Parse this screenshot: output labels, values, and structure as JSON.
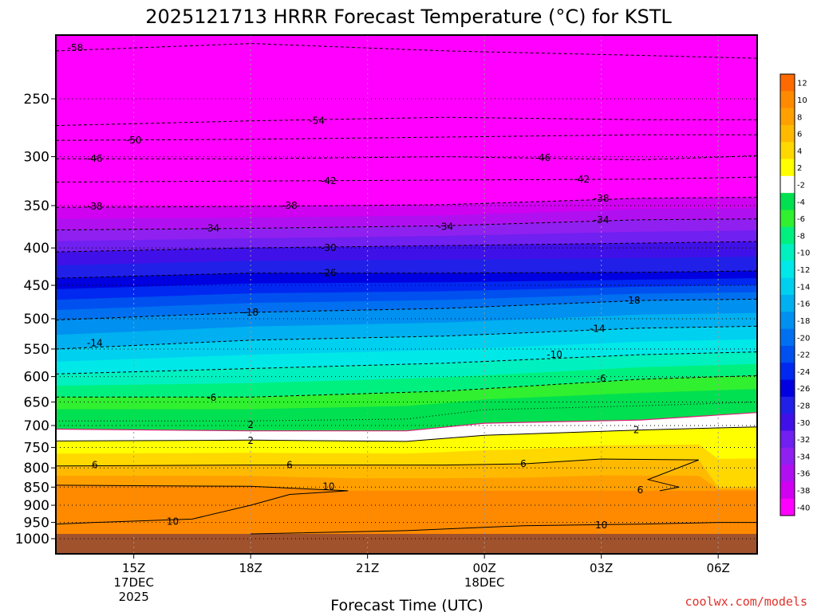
{
  "chart_data": {
    "type": "heatmap",
    "title": "2025121713 HRRR Forecast Temperature (°C) for KSTL",
    "xlabel": "Forecast Time (UTC)",
    "ylabel": "",
    "x_ticks": [
      {
        "label": "15Z",
        "sub": [
          "17DEC",
          "2025"
        ],
        "hours": 0
      },
      {
        "label": "18Z",
        "sub": [],
        "hours": 3
      },
      {
        "label": "21Z",
        "sub": [],
        "hours": 6
      },
      {
        "label": "00Z",
        "sub": [
          "18DEC"
        ],
        "hours": 9
      },
      {
        "label": "03Z",
        "sub": [],
        "hours": 12
      },
      {
        "label": "06Z",
        "sub": [],
        "hours": 15
      }
    ],
    "xlim": [
      -2,
      16
    ],
    "y_ticks": [
      {
        "label": "250",
        "value": 250
      },
      {
        "label": "300",
        "value": 300
      },
      {
        "label": "350",
        "value": 350
      },
      {
        "label": "400",
        "value": 400
      },
      {
        "label": "450",
        "value": 450
      },
      {
        "label": "500",
        "value": 500
      },
      {
        "label": "550",
        "value": 550
      },
      {
        "label": "600",
        "value": 600
      },
      {
        "label": "650",
        "value": 650
      },
      {
        "label": "700",
        "value": 700
      },
      {
        "label": "750",
        "value": 750
      },
      {
        "label": "800",
        "value": 800
      },
      {
        "label": "850",
        "value": 850
      },
      {
        "label": "900",
        "value": 900
      },
      {
        "label": "950",
        "value": 950
      },
      {
        "label": "1000",
        "value": 1000
      }
    ],
    "ylim": [
      200,
      1020
    ],
    "y_scale": "log-pressure (reversed)",
    "grid": true,
    "colorbar": {
      "placement": "right",
      "levels": [
        "12",
        "10",
        "8",
        "6",
        "4",
        "2",
        "-2",
        "-4",
        "-6",
        "-8",
        "-10",
        "-12",
        "-14",
        "-16",
        "-18",
        "-20",
        "-22",
        "-24",
        "-26",
        "-28",
        "-30",
        "-32",
        "-34",
        "-36",
        "-38",
        "-40"
      ],
      "colors": [
        "#ff6a00",
        "#ff8a00",
        "#ffa000",
        "#ffba00",
        "#ffd800",
        "#ffff00",
        "#ffffff",
        "#00e050",
        "#30f030",
        "#00f080",
        "#00f0c0",
        "#00e8e8",
        "#00d0f0",
        "#00b0f0",
        "#0090f0",
        "#0070f0",
        "#0050f0",
        "#0028f0",
        "#0000e0",
        "#2020e8",
        "#4010e8",
        "#7020f0",
        "#9020f0",
        "#b010f0",
        "#d000f0",
        "#ff00ff"
      ]
    },
    "bands": [
      {
        "temp": -58,
        "color": "#ff00ff"
      },
      {
        "temp": -40,
        "color": "#ff00ff"
      },
      {
        "temp": -38,
        "color": "#d000f0"
      },
      {
        "temp": -36,
        "color": "#b010f0"
      },
      {
        "temp": -34,
        "color": "#9020f0"
      },
      {
        "temp": -32,
        "color": "#7020f0"
      },
      {
        "temp": -30,
        "color": "#4010e8"
      },
      {
        "temp": -28,
        "color": "#2020e8"
      },
      {
        "temp": -26,
        "color": "#0000e0"
      },
      {
        "temp": -24,
        "color": "#0028f0"
      },
      {
        "temp": -22,
        "color": "#0050f0"
      },
      {
        "temp": -20,
        "color": "#0070f0"
      },
      {
        "temp": -18,
        "color": "#0090f0"
      },
      {
        "temp": -16,
        "color": "#00b0f0"
      },
      {
        "temp": -14,
        "color": "#00d0f0"
      },
      {
        "temp": -12,
        "color": "#00e8e8"
      },
      {
        "temp": -10,
        "color": "#00f0c0"
      },
      {
        "temp": -8,
        "color": "#00f080"
      },
      {
        "temp": -6,
        "color": "#30f030"
      },
      {
        "temp": -4,
        "color": "#00e050"
      },
      {
        "temp": -2,
        "color": "#00e050"
      },
      {
        "temp": 0,
        "color": "#ffffff"
      },
      {
        "temp": 2,
        "color": "#ffff00"
      },
      {
        "temp": 4,
        "color": "#ffd800"
      },
      {
        "temp": 6,
        "color": "#ffba00"
      },
      {
        "temp": 8,
        "color": "#ffa000"
      },
      {
        "temp": 10,
        "color": "#ff8a00"
      }
    ],
    "ground_color": "#a0522d",
    "ground_pressure": 985,
    "contours": [
      {
        "temp": -58,
        "label": "-58",
        "style": "dashed",
        "points": [
          [
            -2,
            215
          ],
          [
            3,
            210
          ],
          [
            8,
            215
          ],
          [
            13,
            218
          ],
          [
            16,
            220
          ]
        ],
        "label_at": [
          [
            -1.5,
            213
          ]
        ]
      },
      {
        "temp": -54,
        "label": "-54",
        "style": "dashed",
        "points": [
          [
            -2,
            272
          ],
          [
            3,
            268
          ],
          [
            8,
            265
          ],
          [
            13,
            267
          ],
          [
            16,
            267
          ]
        ],
        "label_at": [
          [
            4.7,
            268
          ]
        ]
      },
      {
        "temp": -50,
        "label": "-50",
        "style": "dashed",
        "points": [
          [
            -2,
            285
          ],
          [
            3,
            284
          ],
          [
            8,
            282
          ],
          [
            13,
            280
          ],
          [
            16,
            280
          ]
        ],
        "label_at": [
          [
            0,
            285
          ]
        ]
      },
      {
        "temp": -46,
        "label": "-46",
        "style": "dashed",
        "points": [
          [
            -2,
            302
          ],
          [
            3,
            302
          ],
          [
            8,
            300
          ],
          [
            13,
            303
          ],
          [
            16,
            299
          ]
        ],
        "label_at": [
          [
            -1,
            302
          ],
          [
            10.5,
            301
          ]
        ]
      },
      {
        "temp": -42,
        "label": "-42",
        "style": "dashed",
        "points": [
          [
            -2,
            325
          ],
          [
            3,
            324
          ],
          [
            8,
            323
          ],
          [
            13,
            322
          ],
          [
            16,
            320
          ]
        ],
        "label_at": [
          [
            5,
            324
          ],
          [
            11.5,
            322
          ]
        ]
      },
      {
        "temp": -38,
        "label": "-38",
        "style": "dashed",
        "points": [
          [
            -2,
            352
          ],
          [
            3,
            351
          ],
          [
            8,
            349
          ],
          [
            13,
            342
          ],
          [
            16,
            341
          ]
        ],
        "label_at": [
          [
            -1,
            351
          ],
          [
            4,
            350
          ],
          [
            12,
            342
          ]
        ]
      },
      {
        "temp": -34,
        "label": "-34",
        "style": "dashed",
        "points": [
          [
            -2,
            378
          ],
          [
            3,
            376
          ],
          [
            8,
            373
          ],
          [
            13,
            366
          ],
          [
            16,
            365
          ]
        ],
        "label_at": [
          [
            2,
            376
          ],
          [
            8,
            374
          ],
          [
            12,
            366
          ]
        ]
      },
      {
        "temp": -30,
        "label": "-30",
        "style": "dashed",
        "points": [
          [
            -2,
            405
          ],
          [
            3,
            400
          ],
          [
            8,
            397
          ],
          [
            13,
            394
          ],
          [
            16,
            392
          ]
        ],
        "label_at": [
          [
            5,
            400
          ]
        ]
      },
      {
        "temp": -26,
        "label": "-26",
        "style": "dashed",
        "points": [
          [
            -2,
            440
          ],
          [
            3,
            433
          ],
          [
            8,
            433
          ],
          [
            13,
            432
          ],
          [
            16,
            430
          ]
        ],
        "label_at": [
          [
            5,
            433
          ]
        ]
      },
      {
        "temp": -18,
        "label": "-18",
        "style": "dashed",
        "points": [
          [
            -2,
            502
          ],
          [
            3,
            490
          ],
          [
            8,
            484
          ],
          [
            13,
            472
          ],
          [
            16,
            470
          ]
        ],
        "label_at": [
          [
            3,
            490
          ],
          [
            12.8,
            472
          ]
        ]
      },
      {
        "temp": -14,
        "label": "-14",
        "style": "dashed",
        "points": [
          [
            -2,
            550
          ],
          [
            3,
            535
          ],
          [
            8,
            528
          ],
          [
            13,
            515
          ],
          [
            16,
            512
          ]
        ],
        "label_at": [
          [
            -1,
            540
          ],
          [
            11.9,
            516
          ]
        ]
      },
      {
        "temp": -10,
        "label": "-10",
        "style": "dashed",
        "points": [
          [
            -2,
            595
          ],
          [
            3,
            585
          ],
          [
            8,
            575
          ],
          [
            13,
            560
          ],
          [
            16,
            555
          ]
        ],
        "label_at": [
          [
            10.8,
            560
          ]
        ]
      },
      {
        "temp": -6,
        "label": "-6",
        "style": "dashed",
        "points": [
          [
            -2,
            640
          ],
          [
            3,
            640
          ],
          [
            8,
            628
          ],
          [
            13,
            605
          ],
          [
            16,
            598
          ]
        ],
        "label_at": [
          [
            2,
            641
          ],
          [
            12,
            604
          ]
        ]
      },
      {
        "temp": -2,
        "label": "",
        "style": "dotted",
        "points": [
          [
            -2,
            690
          ],
          [
            3,
            690
          ],
          [
            7,
            686
          ],
          [
            9,
            666
          ],
          [
            13,
            658
          ],
          [
            16,
            650
          ]
        ],
        "label_at": []
      },
      {
        "temp": 0,
        "label": "",
        "style": "solid-magenta",
        "points": [
          [
            -2,
            708
          ],
          [
            3,
            712
          ],
          [
            7,
            712
          ],
          [
            9,
            695
          ],
          [
            13,
            688
          ],
          [
            16,
            672
          ]
        ],
        "label_at": []
      },
      {
        "temp": 2,
        "label": "2",
        "style": "solid",
        "points": [
          [
            -2,
            735
          ],
          [
            3,
            733
          ],
          [
            7,
            736
          ],
          [
            9,
            722
          ],
          [
            13,
            710
          ],
          [
            16,
            703
          ]
        ],
        "label_at": [
          [
            3,
            698
          ],
          [
            3,
            734
          ],
          [
            12.9,
            710
          ]
        ]
      },
      {
        "temp": 6,
        "label": "6",
        "style": "solid",
        "points": [
          [
            -2,
            795
          ],
          [
            3,
            793
          ],
          [
            8,
            793
          ],
          [
            10,
            790
          ],
          [
            12,
            778
          ],
          [
            14.5,
            780
          ],
          [
            13.2,
            830
          ],
          [
            14,
            850
          ],
          [
            13.5,
            860
          ]
        ],
        "label_at": [
          [
            -1,
            793
          ],
          [
            4,
            793
          ],
          [
            10,
            790
          ],
          [
            13,
            858
          ]
        ]
      },
      {
        "temp": 10,
        "label": "10",
        "style": "solid",
        "points": [
          [
            -2,
            845
          ],
          [
            3,
            848
          ],
          [
            5.5,
            860
          ],
          [
            4,
            870
          ],
          [
            3,
            900
          ],
          [
            1.5,
            940
          ],
          [
            -1,
            950
          ],
          [
            -2,
            955
          ]
        ],
        "label_at": [
          [
            5,
            848
          ],
          [
            1,
            948
          ]
        ]
      },
      {
        "temp": 10,
        "label": "10",
        "style": "solid",
        "points": [
          [
            3,
            985
          ],
          [
            7,
            975
          ],
          [
            10,
            960
          ],
          [
            13,
            955
          ],
          [
            15,
            950
          ],
          [
            16,
            950
          ]
        ],
        "label_at": [
          [
            12,
            958
          ]
        ]
      }
    ]
  },
  "footer": {
    "credit": "coolwx.com/models"
  }
}
